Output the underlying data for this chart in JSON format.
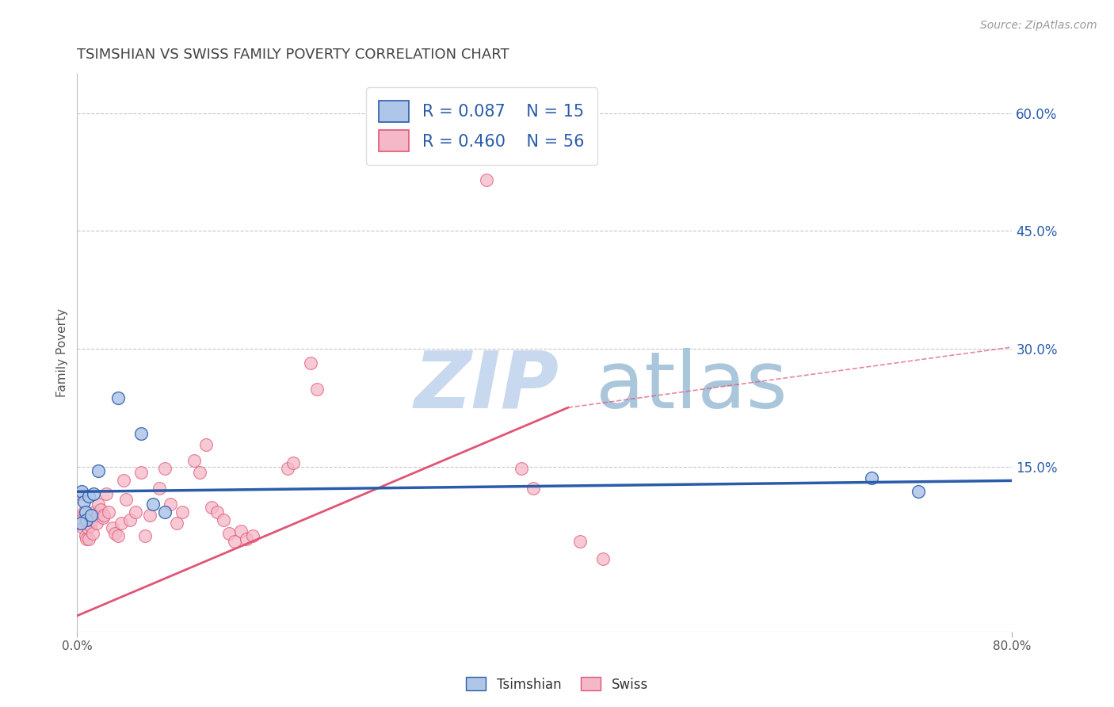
{
  "title": "TSIMSHIAN VS SWISS FAMILY POVERTY CORRELATION CHART",
  "source": "Source: ZipAtlas.com",
  "ylabel": "Family Poverty",
  "xlim": [
    0.0,
    0.8
  ],
  "ylim": [
    -0.06,
    0.65
  ],
  "ytick_positions": [
    0.15,
    0.3,
    0.45,
    0.6
  ],
  "ytick_labels": [
    "15.0%",
    "30.0%",
    "45.0%",
    "60.0%"
  ],
  "tsimshian_color": "#aec6e8",
  "swiss_color": "#f4b8c8",
  "tsimshian_line_color": "#2a5caa",
  "swiss_line_color": "#e05575",
  "tsimshian_R": 0.087,
  "tsimshian_N": 15,
  "swiss_R": 0.46,
  "swiss_N": 56,
  "legend_text_color": "#2a5caa",
  "tsimshian_points": [
    [
      0.004,
      0.118
    ],
    [
      0.006,
      0.105
    ],
    [
      0.007,
      0.092
    ],
    [
      0.008,
      0.082
    ],
    [
      0.01,
      0.112
    ],
    [
      0.012,
      0.088
    ],
    [
      0.014,
      0.115
    ],
    [
      0.018,
      0.145
    ],
    [
      0.035,
      0.237
    ],
    [
      0.055,
      0.192
    ],
    [
      0.065,
      0.102
    ],
    [
      0.075,
      0.092
    ],
    [
      0.68,
      0.135
    ],
    [
      0.72,
      0.118
    ],
    [
      0.003,
      0.078
    ]
  ],
  "swiss_points": [
    [
      0.003,
      0.115
    ],
    [
      0.004,
      0.082
    ],
    [
      0.005,
      0.072
    ],
    [
      0.006,
      0.092
    ],
    [
      0.007,
      0.062
    ],
    [
      0.008,
      0.058
    ],
    [
      0.009,
      0.072
    ],
    [
      0.01,
      0.058
    ],
    [
      0.011,
      0.075
    ],
    [
      0.012,
      0.082
    ],
    [
      0.013,
      0.065
    ],
    [
      0.015,
      0.092
    ],
    [
      0.016,
      0.088
    ],
    [
      0.017,
      0.078
    ],
    [
      0.018,
      0.102
    ],
    [
      0.02,
      0.095
    ],
    [
      0.022,
      0.085
    ],
    [
      0.023,
      0.088
    ],
    [
      0.025,
      0.115
    ],
    [
      0.027,
      0.092
    ],
    [
      0.03,
      0.072
    ],
    [
      0.032,
      0.065
    ],
    [
      0.035,
      0.062
    ],
    [
      0.038,
      0.078
    ],
    [
      0.04,
      0.132
    ],
    [
      0.042,
      0.108
    ],
    [
      0.045,
      0.082
    ],
    [
      0.05,
      0.092
    ],
    [
      0.055,
      0.142
    ],
    [
      0.058,
      0.062
    ],
    [
      0.062,
      0.088
    ],
    [
      0.07,
      0.122
    ],
    [
      0.075,
      0.148
    ],
    [
      0.08,
      0.102
    ],
    [
      0.085,
      0.078
    ],
    [
      0.09,
      0.092
    ],
    [
      0.1,
      0.158
    ],
    [
      0.105,
      0.142
    ],
    [
      0.11,
      0.178
    ],
    [
      0.115,
      0.098
    ],
    [
      0.12,
      0.092
    ],
    [
      0.125,
      0.082
    ],
    [
      0.13,
      0.065
    ],
    [
      0.135,
      0.055
    ],
    [
      0.14,
      0.068
    ],
    [
      0.145,
      0.058
    ],
    [
      0.15,
      0.062
    ],
    [
      0.18,
      0.148
    ],
    [
      0.185,
      0.155
    ],
    [
      0.2,
      0.282
    ],
    [
      0.205,
      0.248
    ],
    [
      0.35,
      0.515
    ],
    [
      0.38,
      0.148
    ],
    [
      0.39,
      0.122
    ],
    [
      0.43,
      0.055
    ],
    [
      0.45,
      0.032
    ]
  ],
  "tsimshian_trend": [
    0.0,
    0.8,
    0.118,
    0.132
  ],
  "swiss_trend_solid": [
    0.0,
    0.42,
    -0.04,
    0.225
  ],
  "swiss_trend_dashed": [
    0.42,
    0.8,
    0.225,
    0.302
  ],
  "background_color": "#ffffff",
  "grid_color": "#c8c8c8",
  "watermark_zip": "ZIP",
  "watermark_atlas": "atlas"
}
